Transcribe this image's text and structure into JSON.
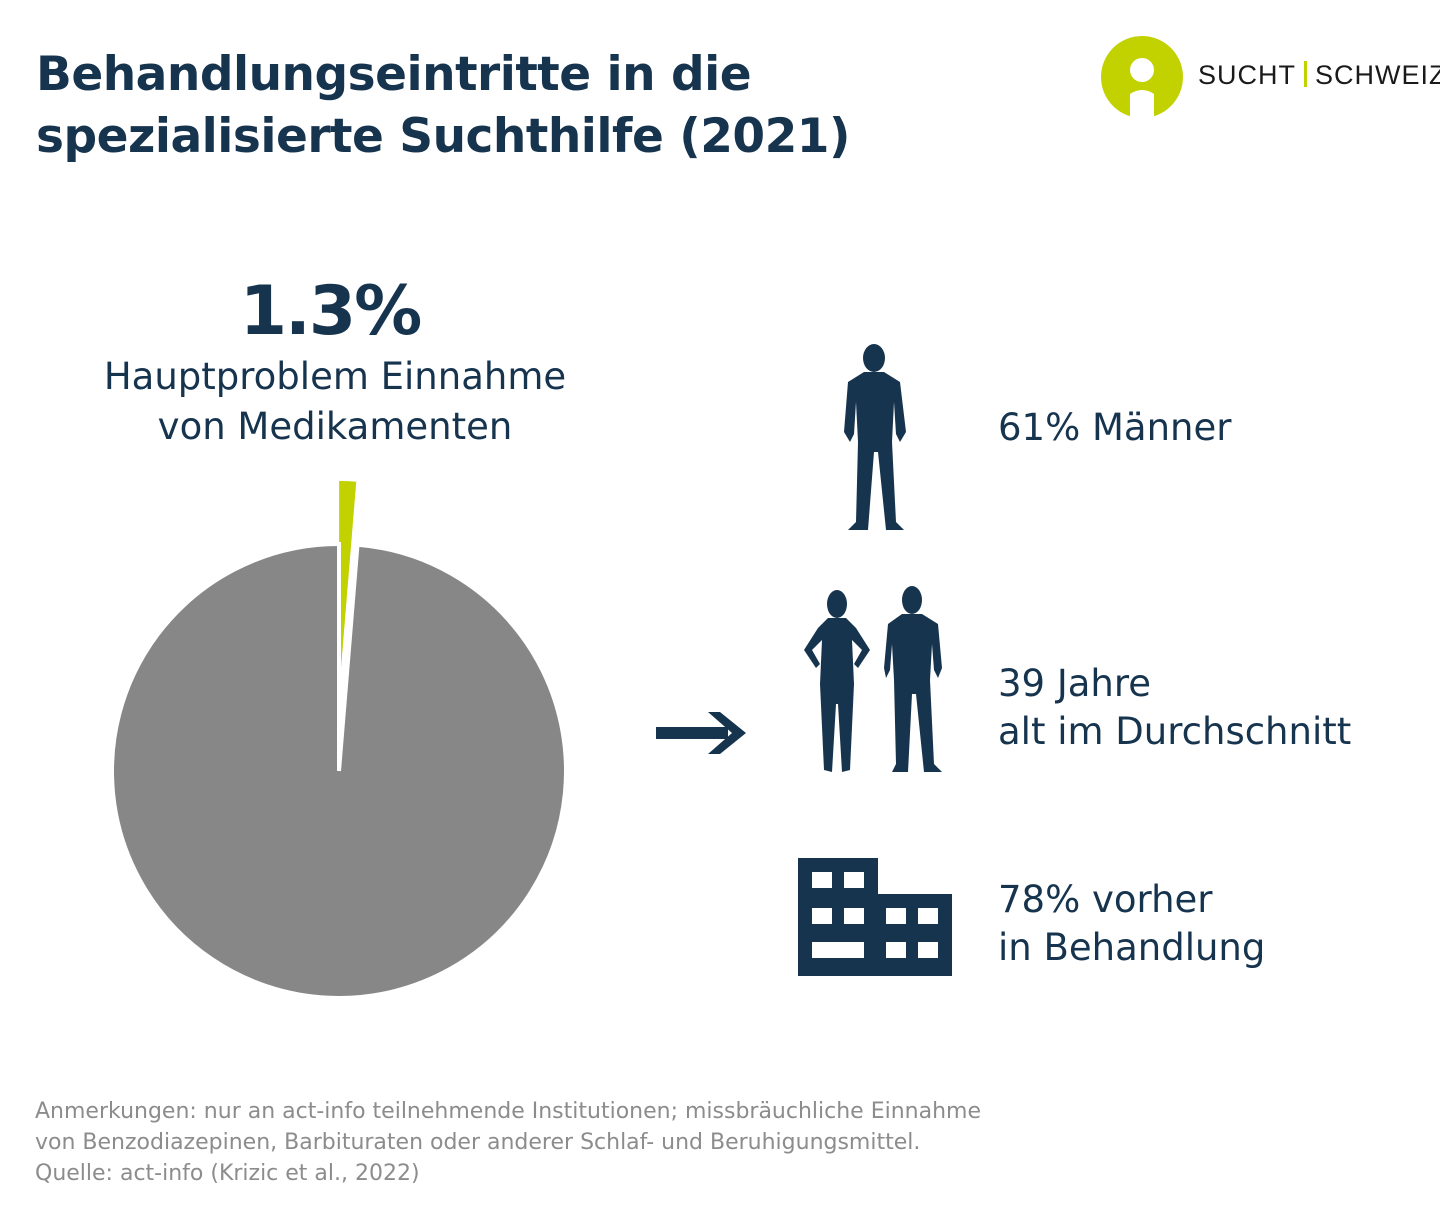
{
  "title": {
    "line1": "Behandlungseintritte in die",
    "line2": "spezialisierte Suchthilfe (2021)"
  },
  "logo": {
    "left": "SUCHT",
    "right": "SCHWEIZ"
  },
  "highlight": {
    "value": "1.3%",
    "label_line1": "Hauptproblem Einnahme",
    "label_line2": "von Medikamenten"
  },
  "chart_data": {
    "type": "pie",
    "values": [
      1.3,
      98.7
    ],
    "categories": [
      "Hauptproblem Einnahme von Medikamenten",
      ""
    ],
    "colors": [
      "#c2d100",
      "#878787"
    ],
    "exploded": [
      true,
      false
    ]
  },
  "stats": [
    {
      "icon": "man-icon",
      "line1": "61% Männer",
      "line2": ""
    },
    {
      "icon": "woman-and-man-icon",
      "line1": "39 Jahre",
      "line2": "alt im Durchschnitt"
    },
    {
      "icon": "building-icon",
      "line1": "78% vorher",
      "line2": "in Behandlung"
    }
  ],
  "notes": {
    "line1": "Anmerkungen: nur an act-info teilnehmende Institutionen; missbräuchliche Einnahme",
    "line2": "von Benzodiazepinen, Barbituraten oder anderer Schlaf- und Beruhigungsmittel.",
    "line3": "Quelle: act-info (Krizic et al., 2022)"
  },
  "colors": {
    "navy": "#17344f",
    "accent": "#c2d100",
    "grey": "#878787"
  }
}
